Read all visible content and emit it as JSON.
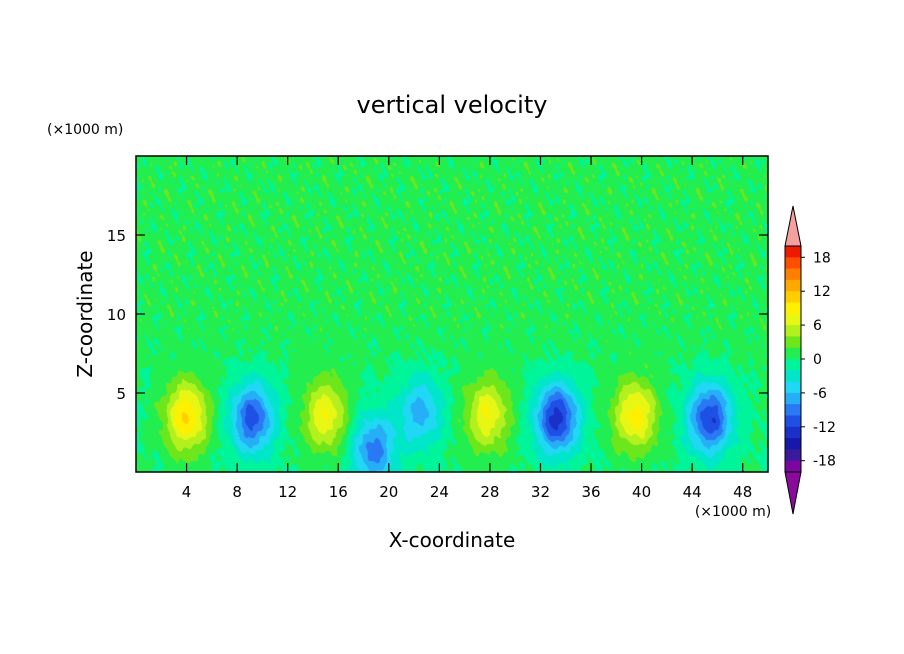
{
  "chart_data": {
    "type": "heatmap",
    "title": "vertical velocity",
    "xlabel": "X-coordinate",
    "ylabel": "Z-coordinate",
    "x_unit": "(×1000 m)",
    "y_unit": "(×1000 m)",
    "xlim": [
      0,
      50
    ],
    "ylim": [
      0,
      20
    ],
    "x_ticks": [
      4,
      8,
      12,
      16,
      20,
      24,
      28,
      32,
      36,
      40,
      44,
      48
    ],
    "y_ticks": [
      5,
      10,
      15
    ],
    "colorbar": {
      "levels": [
        -20,
        -18,
        -16,
        -14,
        -12,
        -10,
        -8,
        -6,
        -4,
        -2,
        0,
        2,
        4,
        6,
        8,
        10,
        12,
        14,
        16,
        18,
        20
      ],
      "tick_labels": [
        "18",
        "12",
        "6",
        "0",
        "-6",
        "-12",
        "-18"
      ],
      "tick_values": [
        18,
        12,
        6,
        0,
        -6,
        -12,
        -18
      ],
      "colors": [
        "#7b06a0",
        "#3a1a9c",
        "#1818a8",
        "#1a30c8",
        "#1e50e6",
        "#2a78f4",
        "#26aef6",
        "#20d8f4",
        "#00e6c8",
        "#00f49a",
        "#22ee50",
        "#6ee61c",
        "#b2f01e",
        "#e8f614",
        "#fff000",
        "#ffce00",
        "#ffa800",
        "#ff8000",
        "#ff4e00",
        "#ee1a00"
      ],
      "overflow_high": "#f5a0a0",
      "overflow_low": "#8a0a9e"
    },
    "cells": [
      {
        "x": 4,
        "z": 3.5,
        "w": 10
      },
      {
        "x": 9.2,
        "z": 3.4,
        "w": -11
      },
      {
        "x": 15,
        "z": 3.6,
        "w": 8
      },
      {
        "x": 18.8,
        "z": 1.4,
        "w": -9
      },
      {
        "x": 22.5,
        "z": 3.8,
        "w": -7
      },
      {
        "x": 27.8,
        "z": 3.6,
        "w": 8
      },
      {
        "x": 33.3,
        "z": 3.4,
        "w": -13
      },
      {
        "x": 39.5,
        "z": 3.6,
        "w": 9
      },
      {
        "x": 45.4,
        "z": 3.4,
        "w": -12
      }
    ]
  }
}
